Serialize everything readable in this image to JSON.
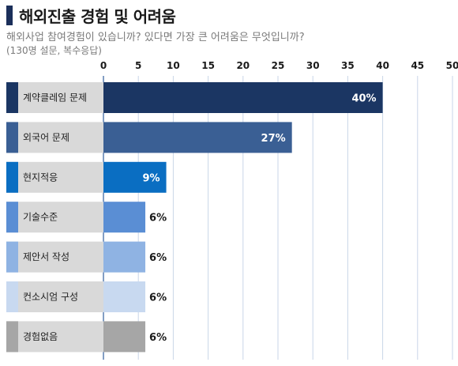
{
  "header": {
    "title": "해외진출 경험 및 어려움",
    "subtitle": "해외사업 참여경험이 있습니까? 있다면 가장 큰 어려움은 무엇입니까?",
    "note": "(130명 설문, 복수응답)"
  },
  "chart_data": {
    "type": "bar",
    "orientation": "horizontal",
    "categories": [
      "계약클레임 문제",
      "외국어 문제",
      "현지적응",
      "기술수준",
      "제안서 작성",
      "컨소시엄 구성",
      "경험없음"
    ],
    "values": [
      40,
      27,
      9,
      6,
      6,
      6,
      6
    ],
    "value_labels": [
      "40%",
      "27%",
      "9%",
      "6%",
      "6%",
      "6%",
      "6%"
    ],
    "xlim": [
      0,
      50
    ],
    "xticks": [
      0,
      5,
      10,
      15,
      20,
      25,
      30,
      35,
      40,
      45,
      50
    ],
    "xtick_labels": [
      "0",
      "5",
      "10",
      "15",
      "20",
      "25",
      "30",
      "35",
      "40",
      "45",
      "50"
    ],
    "x_axis_position": "top",
    "grid": true,
    "colors": [
      "#1b3663",
      "#3a5f94",
      "#0a6ec2",
      "#5a8ed4",
      "#8fb3e3",
      "#c8d9f0",
      "#a6a6a6"
    ],
    "label_colors": [
      "#ffffff",
      "#ffffff",
      "#ffffff",
      "#1a1a1a",
      "#1a1a1a",
      "#1a1a1a",
      "#1a1a1a"
    ],
    "label_inside": [
      true,
      true,
      true,
      false,
      false,
      false,
      false
    ]
  }
}
